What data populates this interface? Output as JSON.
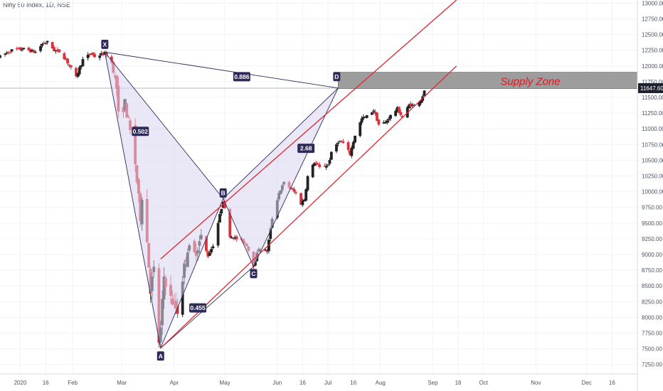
{
  "title": "Nifty 50 Index, 1D, NSE",
  "colors": {
    "up": "#222222",
    "down": "#d9323c",
    "channel": "#e3252f",
    "pattern": "#2e2a5a",
    "pattern_fill": "#d9d6ef",
    "zone": "#8c8c8c",
    "zone_text": "#e3161f",
    "price_tag": "#1e2230"
  },
  "price_tag": "11647.60",
  "supply_zone_label": "Supply Zone",
  "pattern": {
    "points": [
      {
        "label": "X",
        "date": "2020-02-20",
        "price": 12220
      },
      {
        "label": "A",
        "date": "2020-03-24",
        "price": 7510
      },
      {
        "label": "B",
        "date": "2020-04-30",
        "price": 9890
      },
      {
        "label": "C",
        "date": "2020-05-18",
        "price": 8810
      },
      {
        "label": "D",
        "date": "2020-07-07",
        "price": 11650
      }
    ],
    "ratios": [
      {
        "label": "0.886",
        "date": "2020-05-11",
        "price": 11830
      },
      {
        "label": "0.502",
        "date": "2020-03-12",
        "price": 10960
      },
      {
        "label": "2.68",
        "date": "2020-06-18",
        "price": 10690
      },
      {
        "label": "0.455",
        "date": "2020-04-15",
        "price": 8150
      }
    ]
  },
  "chart_data": {
    "type": "candlestick",
    "title": "Nifty 50 Index, 1D, NSE",
    "y_range": [
      7100,
      13050
    ],
    "x_range": [
      "2019-12-20",
      "2020-12-31"
    ],
    "y_ticks": [
      "7250.00",
      "7500.00",
      "7750.00",
      "8000.00",
      "8250.00",
      "8500.00",
      "8750.00",
      "9000.00",
      "9250.00",
      "9500.00",
      "9750.00",
      "10000.00",
      "10250.00",
      "10500.00",
      "10750.00",
      "11000.00",
      "11250.00",
      "11500.00",
      "11750.00",
      "12000.00",
      "12250.00",
      "12500.00",
      "12750.00",
      "13000.00"
    ],
    "x_ticks": [
      {
        "label": "2020",
        "date": "2020-01-01"
      },
      {
        "label": "16",
        "date": "2020-01-16"
      },
      {
        "label": "Feb",
        "date": "2020-02-01"
      },
      {
        "label": "Mar",
        "date": "2020-03-01"
      },
      {
        "label": "Apr",
        "date": "2020-04-01"
      },
      {
        "label": "May",
        "date": "2020-05-01"
      },
      {
        "label": "Jun",
        "date": "2020-06-01"
      },
      {
        "label": "16",
        "date": "2020-06-16"
      },
      {
        "label": "Jul",
        "date": "2020-07-01"
      },
      {
        "label": "16",
        "date": "2020-07-16"
      },
      {
        "label": "Aug",
        "date": "2020-08-01"
      },
      {
        "label": "Sep",
        "date": "2020-09-01"
      },
      {
        "label": "16",
        "date": "2020-09-16"
      },
      {
        "label": "Oct",
        "date": "2020-10-01"
      },
      {
        "label": "Nov",
        "date": "2020-11-01"
      },
      {
        "label": "Dec",
        "date": "2020-12-01"
      },
      {
        "label": "16",
        "date": "2020-12-16"
      }
    ],
    "price_path": [
      [
        "2019-12-20",
        12150
      ],
      [
        "2019-12-27",
        12250
      ],
      [
        "2020-01-03",
        12270
      ],
      [
        "2020-01-10",
        12220
      ],
      [
        "2020-01-14",
        12350
      ],
      [
        "2020-01-17",
        12380
      ],
      [
        "2020-01-21",
        12250
      ],
      [
        "2020-01-24",
        12230
      ],
      [
        "2020-01-28",
        12100
      ],
      [
        "2020-01-31",
        11960
      ],
      [
        "2020-02-01",
        11650
      ],
      [
        "2020-02-04",
        11900
      ],
      [
        "2020-02-07",
        12100
      ],
      [
        "2020-02-12",
        12200
      ],
      [
        "2020-02-14",
        12150
      ],
      [
        "2020-02-20",
        12200
      ],
      [
        "2020-02-24",
        12050
      ],
      [
        "2020-02-27",
        11650
      ],
      [
        "2020-02-28",
        11200
      ],
      [
        "2020-03-03",
        11400
      ],
      [
        "2020-03-06",
        10950
      ],
      [
        "2020-03-09",
        10450
      ],
      [
        "2020-03-12",
        9600
      ],
      [
        "2020-03-13",
        9950
      ],
      [
        "2020-03-16",
        9200
      ],
      [
        "2020-03-18",
        8450
      ],
      [
        "2020-03-20",
        8750
      ],
      [
        "2020-03-23",
        7610
      ],
      [
        "2020-03-24",
        7800
      ],
      [
        "2020-03-26",
        8650
      ],
      [
        "2020-03-30",
        8300
      ],
      [
        "2020-04-03",
        8100
      ],
      [
        "2020-04-07",
        8800
      ],
      [
        "2020-04-09",
        9100
      ],
      [
        "2020-04-13",
        9000
      ],
      [
        "2020-04-17",
        9270
      ],
      [
        "2020-04-21",
        8980
      ],
      [
        "2020-04-24",
        9150
      ],
      [
        "2020-04-30",
        9860
      ],
      [
        "2020-05-04",
        9300
      ],
      [
        "2020-05-08",
        9250
      ],
      [
        "2020-05-12",
        9200
      ],
      [
        "2020-05-14",
        9150
      ],
      [
        "2020-05-18",
        8830
      ],
      [
        "2020-05-21",
        9100
      ],
      [
        "2020-05-26",
        9050
      ],
      [
        "2020-05-29",
        9580
      ],
      [
        "2020-06-02",
        9980
      ],
      [
        "2020-06-05",
        10140
      ],
      [
        "2020-06-09",
        10050
      ],
      [
        "2020-06-12",
        9970
      ],
      [
        "2020-06-15",
        9810
      ],
      [
        "2020-06-17",
        9880
      ],
      [
        "2020-06-19",
        10240
      ],
      [
        "2020-06-23",
        10470
      ],
      [
        "2020-06-26",
        10380
      ],
      [
        "2020-07-01",
        10430
      ],
      [
        "2020-07-03",
        10610
      ],
      [
        "2020-07-07",
        10800
      ],
      [
        "2020-07-10",
        10770
      ],
      [
        "2020-07-14",
        10600
      ],
      [
        "2020-07-17",
        10900
      ],
      [
        "2020-07-21",
        11160
      ],
      [
        "2020-07-24",
        11200
      ],
      [
        "2020-07-28",
        11300
      ],
      [
        "2020-07-31",
        11070
      ],
      [
        "2020-08-04",
        11100
      ],
      [
        "2020-08-07",
        11210
      ],
      [
        "2020-08-11",
        11320
      ],
      [
        "2020-08-14",
        11180
      ],
      [
        "2020-08-18",
        11380
      ],
      [
        "2020-08-21",
        11370
      ],
      [
        "2020-08-25",
        11470
      ],
      [
        "2020-08-28",
        11650
      ]
    ],
    "supply_zone": {
      "label": "Supply Zone",
      "from": "2020-07-07",
      "y_low": 11640,
      "y_high": 11900
    },
    "horizontal_line": 11647.6,
    "harmonic_pattern": [
      {
        "label": "X",
        "date": "2020-02-20",
        "price": 12220
      },
      {
        "label": "A",
        "date": "2020-03-24",
        "price": 7510
      },
      {
        "label": "B",
        "date": "2020-04-30",
        "price": 9890
      },
      {
        "label": "C",
        "date": "2020-05-18",
        "price": 8810
      },
      {
        "label": "D",
        "date": "2020-07-07",
        "price": 11650
      }
    ],
    "ratio_labels": [
      "0.886",
      "0.502",
      "2.68",
      "0.455"
    ],
    "channel_lines": [
      {
        "name": "upper",
        "from": [
          "2020-03-24",
          8930
        ],
        "to": [
          "2020-09-15",
          13050
        ]
      },
      {
        "name": "lower",
        "from": [
          "2020-03-24",
          7510
        ],
        "to": [
          "2020-09-15",
          12000
        ]
      }
    ]
  }
}
